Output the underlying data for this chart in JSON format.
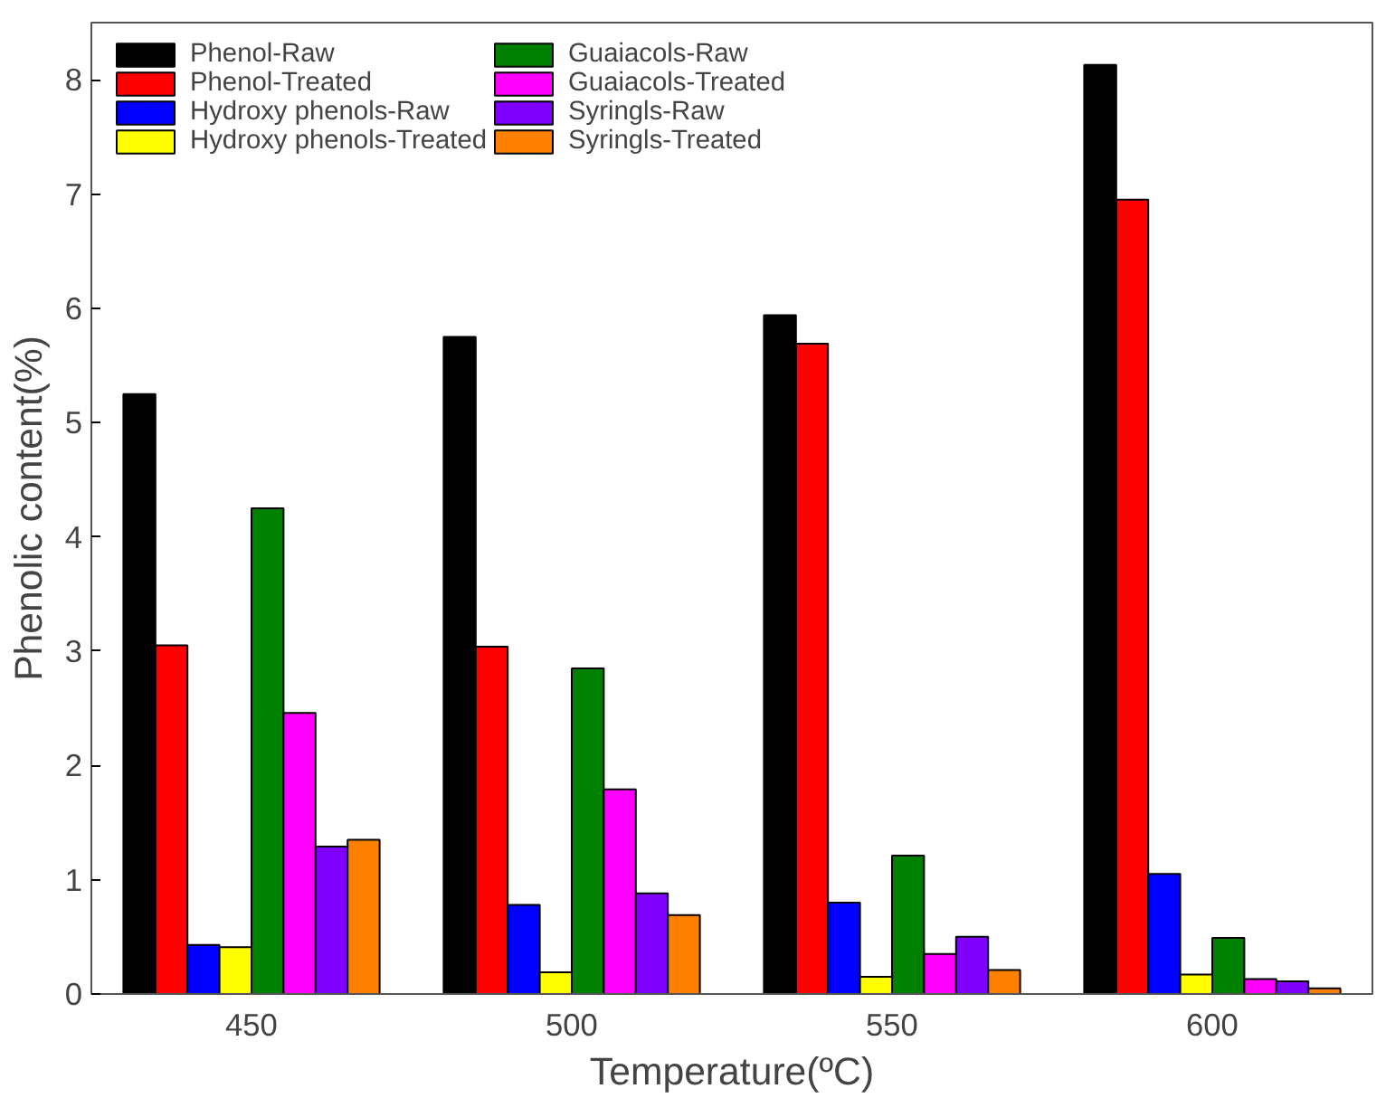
{
  "chart_data": {
    "type": "bar",
    "xlabel": "Temperature(ºC)",
    "ylabel": "Phenolic content(%)",
    "categories": [
      "450",
      "500",
      "550",
      "600"
    ],
    "series": [
      {
        "name": "Phenol-Raw",
        "color": "#000000",
        "values": [
          5.25,
          5.75,
          5.94,
          8.13
        ]
      },
      {
        "name": "Phenol-Treated",
        "color": "#ff0000",
        "values": [
          3.05,
          3.04,
          5.69,
          6.95
        ]
      },
      {
        "name": "Hydroxy phenols-Raw",
        "color": "#0000ff",
        "values": [
          0.43,
          0.78,
          0.8,
          1.05
        ]
      },
      {
        "name": "Hydroxy phenols-Treated",
        "color": "#ffff00",
        "values": [
          0.41,
          0.19,
          0.15,
          0.17
        ]
      },
      {
        "name": "Guaiacols-Raw",
        "color": "#008000",
        "values": [
          4.25,
          2.85,
          1.21,
          0.49
        ]
      },
      {
        "name": "Guaiacols-Treated",
        "color": "#ff00ff",
        "values": [
          2.46,
          1.79,
          0.35,
          0.13
        ]
      },
      {
        "name": "Syringls-Raw",
        "color": "#8000ff",
        "values": [
          1.29,
          0.88,
          0.5,
          0.11
        ]
      },
      {
        "name": "Syringls-Treated",
        "color": "#ff8000",
        "values": [
          1.35,
          0.69,
          0.21,
          0.05
        ]
      }
    ],
    "ylim": [
      0,
      8.5
    ],
    "yticks": [
      0,
      1,
      2,
      3,
      4,
      5,
      6,
      7,
      8
    ],
    "grid": false,
    "legend": "top left"
  }
}
